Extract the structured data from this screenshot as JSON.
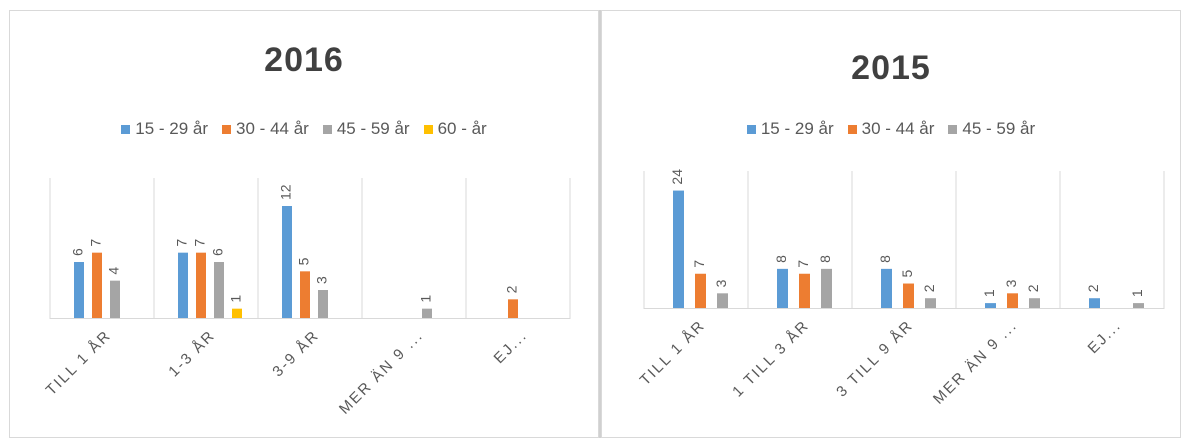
{
  "chart_data": [
    {
      "type": "bar",
      "title": "2016",
      "categories": [
        "TILL 1 ÅR",
        "1-3 ÅR",
        "3-9 ÅR",
        "MER ÄN 9 ...",
        "EJ..."
      ],
      "series": [
        {
          "name": "15 - 29 år",
          "color": "#5b9bd5",
          "values": [
            6,
            7,
            12,
            null,
            null
          ]
        },
        {
          "name": "30 - 44 år",
          "color": "#ed7d31",
          "values": [
            7,
            7,
            5,
            null,
            2
          ]
        },
        {
          "name": "45 - 59 år",
          "color": "#a5a5a5",
          "values": [
            4,
            6,
            3,
            1,
            null
          ]
        },
        {
          "name": "60 - år",
          "color": "#ffc000",
          "values": [
            null,
            1,
            null,
            null,
            null
          ]
        }
      ],
      "ylim": [
        0,
        15
      ],
      "grid": "vertical category separators",
      "legend": "top-center"
    },
    {
      "type": "bar",
      "title": "2015",
      "categories": [
        "TILL 1 ÅR",
        "1 TILL 3 ÅR",
        "3 TILL 9 ÅR",
        "MER ÄN 9 ...",
        "EJ..."
      ],
      "series": [
        {
          "name": "15 - 29 år",
          "color": "#5b9bd5",
          "values": [
            24,
            8,
            8,
            1,
            2
          ]
        },
        {
          "name": "30 - 44 år",
          "color": "#ed7d31",
          "values": [
            7,
            7,
            5,
            3,
            null
          ]
        },
        {
          "name": "45 - 59 år",
          "color": "#a5a5a5",
          "values": [
            3,
            8,
            2,
            2,
            1
          ]
        }
      ],
      "ylim": [
        0,
        28
      ],
      "grid": "vertical category separators",
      "legend": "top-center"
    }
  ]
}
